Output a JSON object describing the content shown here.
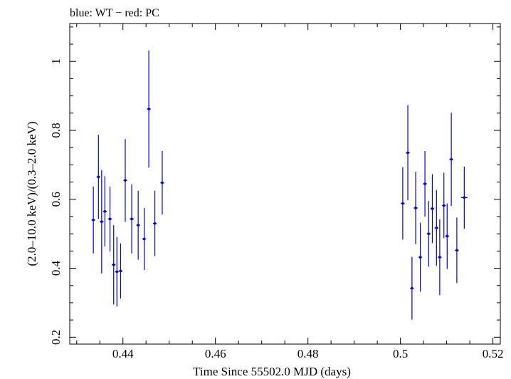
{
  "chart_data": {
    "type": "scatter",
    "title": "blue: WT − red: PC",
    "xlabel": "Time Since 55502.0 MJD (days)",
    "ylabel": "(2.0–10.0 keV)/(0.3–2.0 keV)",
    "xlim": [
      0.4285,
      0.5216
    ],
    "ylim": [
      0.18,
      1.11
    ],
    "x_ticks": [
      0.44,
      0.46,
      0.48,
      0.5,
      0.52
    ],
    "x_tick_labels": [
      "0.44",
      "0.46",
      "0.48",
      "0.5",
      "0.52"
    ],
    "y_ticks": [
      0.2,
      0.4,
      0.6,
      0.8,
      1.0
    ],
    "y_tick_labels": [
      "0.2",
      "0.4",
      "0.6",
      "0.8",
      "1"
    ],
    "grid": false,
    "series": [
      {
        "color": "#0000cc",
        "points": [
          {
            "x": 0.4336,
            "xerr": 0.0004,
            "y": 0.54,
            "yerr": 0.097
          },
          {
            "x": 0.4347,
            "xerr": 0.0004,
            "y": 0.665,
            "yerr": 0.122
          },
          {
            "x": 0.4354,
            "xerr": 0.0004,
            "y": 0.535,
            "yerr": 0.15
          },
          {
            "x": 0.4361,
            "xerr": 0.0004,
            "y": 0.565,
            "yerr": 0.102
          },
          {
            "x": 0.4372,
            "xerr": 0.0004,
            "y": 0.543,
            "yerr": 0.094
          },
          {
            "x": 0.438,
            "xerr": 0.0004,
            "y": 0.41,
            "yerr": 0.115
          },
          {
            "x": 0.4387,
            "xerr": 0.0004,
            "y": 0.39,
            "yerr": 0.101
          },
          {
            "x": 0.4395,
            "xerr": 0.0004,
            "y": 0.392,
            "yerr": 0.08
          },
          {
            "x": 0.4405,
            "xerr": 0.0004,
            "y": 0.655,
            "yerr": 0.12
          },
          {
            "x": 0.4419,
            "xerr": 0.0004,
            "y": 0.543,
            "yerr": 0.1
          },
          {
            "x": 0.4433,
            "xerr": 0.0004,
            "y": 0.525,
            "yerr": 0.1
          },
          {
            "x": 0.4446,
            "xerr": 0.0004,
            "y": 0.485,
            "yerr": 0.09
          },
          {
            "x": 0.4456,
            "xerr": 0.0004,
            "y": 0.862,
            "yerr": 0.17
          },
          {
            "x": 0.4469,
            "xerr": 0.0004,
            "y": 0.53,
            "yerr": 0.095
          },
          {
            "x": 0.4485,
            "xerr": 0.0004,
            "y": 0.648,
            "yerr": 0.092
          },
          {
            "x": 0.5005,
            "xerr": 0.0004,
            "y": 0.588,
            "yerr": 0.105
          },
          {
            "x": 0.5016,
            "xerr": 0.0004,
            "y": 0.735,
            "yerr": 0.138
          },
          {
            "x": 0.5025,
            "xerr": 0.0004,
            "y": 0.342,
            "yerr": 0.091
          },
          {
            "x": 0.5033,
            "xerr": 0.0004,
            "y": 0.575,
            "yerr": 0.105
          },
          {
            "x": 0.5043,
            "xerr": 0.0004,
            "y": 0.432,
            "yerr": 0.1
          },
          {
            "x": 0.5053,
            "xerr": 0.0004,
            "y": 0.645,
            "yerr": 0.095
          },
          {
            "x": 0.5061,
            "xerr": 0.0004,
            "y": 0.5,
            "yerr": 0.095
          },
          {
            "x": 0.5069,
            "xerr": 0.0004,
            "y": 0.573,
            "yerr": 0.1
          },
          {
            "x": 0.5078,
            "xerr": 0.0004,
            "y": 0.517,
            "yerr": 0.11
          },
          {
            "x": 0.5085,
            "xerr": 0.0004,
            "y": 0.432,
            "yerr": 0.11
          },
          {
            "x": 0.5094,
            "xerr": 0.0004,
            "y": 0.582,
            "yerr": 0.095
          },
          {
            "x": 0.5101,
            "xerr": 0.0004,
            "y": 0.493,
            "yerr": 0.095
          },
          {
            "x": 0.511,
            "xerr": 0.0004,
            "y": 0.716,
            "yerr": 0.135
          },
          {
            "x": 0.5122,
            "xerr": 0.0004,
            "y": 0.452,
            "yerr": 0.095
          },
          {
            "x": 0.5138,
            "xerr": 0.0007,
            "y": 0.605,
            "yerr": 0.09
          }
        ]
      }
    ]
  }
}
